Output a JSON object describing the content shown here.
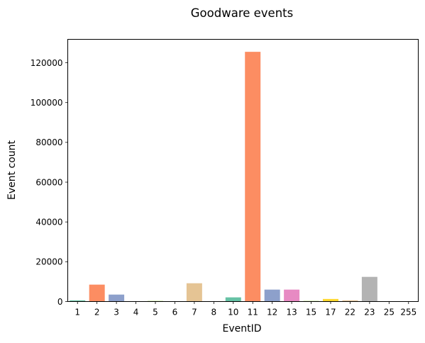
{
  "chart_data": {
    "type": "bar",
    "title": "Goodware events",
    "xlabel": "EventID",
    "ylabel": "Event count",
    "categories": [
      "1",
      "2",
      "3",
      "4",
      "5",
      "6",
      "7",
      "8",
      "10",
      "11",
      "12",
      "13",
      "15",
      "17",
      "22",
      "23",
      "25",
      "255"
    ],
    "values": [
      600,
      8500,
      3500,
      60,
      300,
      30,
      9200,
      20,
      2100,
      125500,
      6000,
      6000,
      300,
      1300,
      600,
      12400,
      20,
      10
    ],
    "colors": [
      "#66c2a5",
      "#fc8d62",
      "#8da0cb",
      "#e78ac3",
      "#a6d854",
      "#ffd92f",
      "#e5c494",
      "#b3b3b3",
      "#66c2a5",
      "#fc8d62",
      "#8da0cb",
      "#e78ac3",
      "#a6d854",
      "#ffd92f",
      "#e5c494",
      "#b3b3b3",
      "#66c2a5",
      "#fc8d62"
    ],
    "yticks": [
      0,
      20000,
      40000,
      60000,
      80000,
      100000,
      120000
    ],
    "ylim": [
      0,
      131775
    ],
    "grid": false,
    "legend": "none"
  }
}
